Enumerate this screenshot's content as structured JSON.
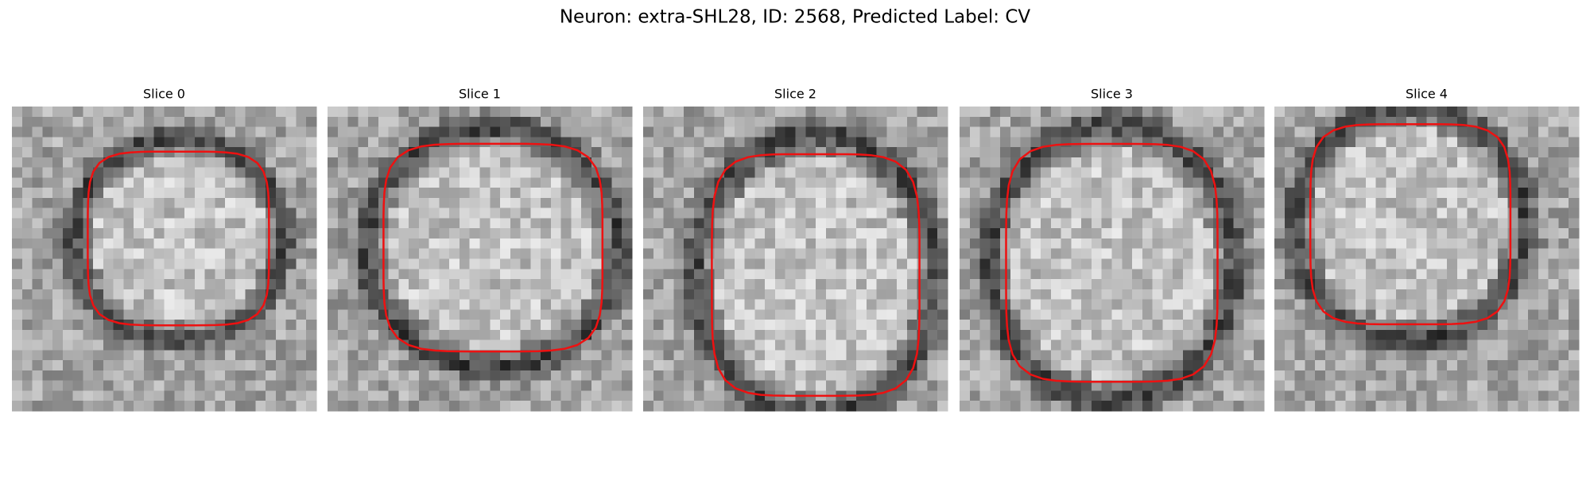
{
  "title": "Neuron: extra-SHL28, ID: 2568, Predicted Label: CV",
  "panels": [
    {
      "label": "Slice 0"
    },
    {
      "label": "Slice 1"
    },
    {
      "label": "Slice 2"
    },
    {
      "label": "Slice 3"
    },
    {
      "label": "Slice 4"
    }
  ]
}
